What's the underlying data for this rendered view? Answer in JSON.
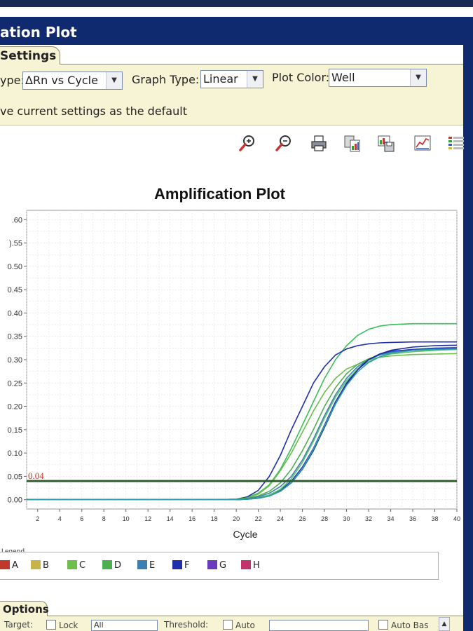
{
  "window": {
    "title": "ation Plot"
  },
  "settings": {
    "tab_label": "Settings",
    "plot_type_label": "ype:",
    "plot_type_value": "ΔRn vs Cycle",
    "graph_type_label": "Graph Type:",
    "graph_type_value": "Linear",
    "plot_color_label": "Plot Color:",
    "plot_color_value": "Well",
    "save_default_label": "ve current settings as the default"
  },
  "toolbar": {
    "icons": [
      "zoom-in-icon",
      "zoom-out-icon",
      "print-icon",
      "copy-to-clipboard-icon",
      "save-image-icon",
      "plot-properties-icon",
      "legend-toggle-icon"
    ]
  },
  "legend": {
    "title": "Legend",
    "items": [
      {
        "label": "A",
        "color": "#c0392b"
      },
      {
        "label": "B",
        "color": "#c8b24a"
      },
      {
        "label": "C",
        "color": "#6cbf4a"
      },
      {
        "label": "D",
        "color": "#4caf50"
      },
      {
        "label": "E",
        "color": "#3d7fb0"
      },
      {
        "label": "F",
        "color": "#1f2fae"
      },
      {
        "label": "G",
        "color": "#6a3bbf"
      },
      {
        "label": "H",
        "color": "#c2336b"
      }
    ]
  },
  "options": {
    "tab_label": "Options",
    "target_label": "Target:",
    "lock_label": "Lock",
    "target_value": "All",
    "threshold_label": "Threshold:",
    "auto_label": "Auto",
    "auto_baseline_label": "Auto Bas"
  },
  "chart_data": {
    "type": "line",
    "title": "Amplification Plot",
    "xlabel": "Cycle",
    "ylabel": "",
    "xlim": [
      1,
      40
    ],
    "ylim": [
      -0.02,
      0.62
    ],
    "x_ticks": [
      "2",
      "4",
      "6",
      "8",
      "10",
      "12",
      "14",
      "16",
      "18",
      "20",
      "22",
      "24",
      "26",
      "28",
      "30",
      "32",
      "34",
      "36",
      "38",
      "40"
    ],
    "y_ticks": [
      ".60",
      ").55",
      "0.50",
      "0.45",
      "0.40",
      "0.35",
      "0.30",
      "0.25",
      "0.20",
      "0.15",
      "0.10",
      "0.05",
      "0.00"
    ],
    "y_tick_values": [
      0.6,
      0.55,
      0.5,
      0.45,
      0.4,
      0.35,
      0.3,
      0.25,
      0.2,
      0.15,
      0.1,
      0.05,
      0.0
    ],
    "grid": true,
    "threshold": {
      "value": 0.04,
      "label": "0.04",
      "color": "#2e5e2a"
    },
    "series": [
      {
        "color": "#3bbf5a",
        "x": [
          1,
          18,
          20,
          21,
          22,
          23,
          24,
          25,
          26,
          27,
          28,
          29,
          30,
          31,
          32,
          33,
          34,
          36,
          38,
          40
        ],
        "y": [
          0.0,
          0.0,
          0.001,
          0.005,
          0.014,
          0.032,
          0.065,
          0.11,
          0.16,
          0.21,
          0.26,
          0.3,
          0.33,
          0.352,
          0.365,
          0.372,
          0.375,
          0.377,
          0.377,
          0.377
        ]
      },
      {
        "color": "#1f2fae",
        "x": [
          1,
          18,
          20,
          21,
          22,
          23,
          24,
          25,
          26,
          27,
          28,
          29,
          30,
          31,
          32,
          33,
          34,
          36,
          38,
          40
        ],
        "y": [
          0.0,
          0.0,
          0.001,
          0.006,
          0.02,
          0.05,
          0.095,
          0.15,
          0.2,
          0.25,
          0.285,
          0.31,
          0.323,
          0.33,
          0.334,
          0.336,
          0.337,
          0.338,
          0.338,
          0.338
        ]
      },
      {
        "color": "#6cbf4a",
        "x": [
          1,
          18,
          20,
          21,
          22,
          23,
          24,
          25,
          26,
          27,
          28,
          29,
          30,
          31,
          32,
          33,
          34,
          36,
          38,
          40
        ],
        "y": [
          0.0,
          0.0,
          0.001,
          0.004,
          0.012,
          0.03,
          0.062,
          0.1,
          0.145,
          0.19,
          0.23,
          0.26,
          0.28,
          0.29,
          0.3,
          0.305,
          0.308,
          0.311,
          0.312,
          0.313
        ]
      },
      {
        "color": "#4caf50",
        "x": [
          1,
          18,
          20,
          21,
          22,
          23,
          24,
          25,
          26,
          27,
          28,
          29,
          30,
          31,
          32,
          33,
          34,
          36,
          38,
          40
        ],
        "y": [
          0.0,
          0.0,
          0.001,
          0.003,
          0.008,
          0.018,
          0.036,
          0.065,
          0.105,
          0.15,
          0.2,
          0.24,
          0.27,
          0.29,
          0.302,
          0.31,
          0.315,
          0.32,
          0.323,
          0.325
        ]
      },
      {
        "color": "#3d7fb0",
        "x": [
          1,
          18,
          20,
          21,
          22,
          23,
          24,
          25,
          26,
          27,
          28,
          29,
          30,
          31,
          32,
          33,
          34,
          36,
          38,
          40
        ],
        "y": [
          0.0,
          0.0,
          0.0,
          0.002,
          0.006,
          0.014,
          0.028,
          0.05,
          0.085,
          0.13,
          0.18,
          0.225,
          0.26,
          0.285,
          0.3,
          0.31,
          0.316,
          0.322,
          0.325,
          0.326
        ]
      },
      {
        "color": "#2a3fb8",
        "x": [
          1,
          18,
          20,
          21,
          22,
          23,
          24,
          25,
          26,
          27,
          28,
          29,
          30,
          31,
          32,
          33,
          34,
          36,
          38,
          40
        ],
        "y": [
          0.0,
          0.0,
          0.0,
          0.001,
          0.004,
          0.009,
          0.02,
          0.04,
          0.07,
          0.11,
          0.16,
          0.21,
          0.25,
          0.28,
          0.3,
          0.312,
          0.318,
          0.322,
          0.324,
          0.325
        ]
      },
      {
        "color": "#5cc46a",
        "x": [
          1,
          18,
          20,
          21,
          22,
          23,
          24,
          25,
          26,
          27,
          28,
          29,
          30,
          31,
          32,
          33,
          34,
          36,
          38,
          40
        ],
        "y": [
          0.0,
          0.0,
          0.0,
          0.001,
          0.004,
          0.01,
          0.022,
          0.045,
          0.08,
          0.125,
          0.175,
          0.22,
          0.255,
          0.28,
          0.296,
          0.306,
          0.312,
          0.317,
          0.32,
          0.322
        ]
      },
      {
        "color": "#1a2a9e",
        "x": [
          1,
          18,
          20,
          21,
          22,
          23,
          24,
          25,
          26,
          27,
          28,
          29,
          30,
          31,
          32,
          33,
          34,
          36,
          38,
          40
        ],
        "y": [
          0.0,
          0.0,
          0.0,
          0.001,
          0.003,
          0.008,
          0.018,
          0.036,
          0.065,
          0.105,
          0.155,
          0.205,
          0.248,
          0.278,
          0.3,
          0.312,
          0.32,
          0.327,
          0.33,
          0.331
        ]
      },
      {
        "color": "#2f9fa8",
        "x": [
          1,
          18,
          20,
          21,
          22,
          23,
          24,
          25,
          26,
          27,
          28,
          29,
          30,
          31,
          32,
          33,
          34,
          36,
          38,
          40
        ],
        "y": [
          0.0,
          0.0,
          0.0,
          0.001,
          0.003,
          0.008,
          0.018,
          0.036,
          0.066,
          0.108,
          0.158,
          0.205,
          0.245,
          0.274,
          0.294,
          0.306,
          0.314,
          0.32,
          0.322,
          0.323
        ]
      }
    ]
  }
}
